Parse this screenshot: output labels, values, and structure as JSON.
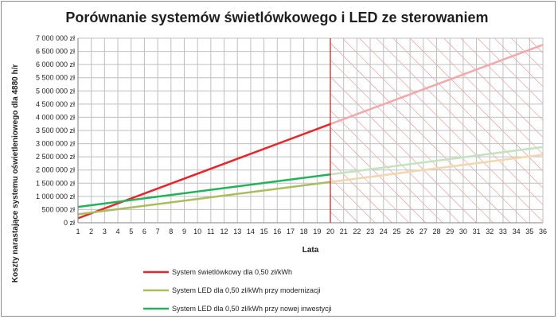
{
  "chart_data": {
    "type": "line",
    "title": "Porównanie systemów świetlówkowego i LED ze sterowaniem",
    "xlabel": "Lata",
    "ylabel": "Koszty narastające  systemu  oświetleniowego dla 4880 h/r",
    "x": [
      1,
      2,
      3,
      4,
      5,
      6,
      7,
      8,
      9,
      10,
      11,
      12,
      13,
      14,
      15,
      16,
      17,
      18,
      19,
      20,
      21,
      22,
      23,
      24,
      25,
      26,
      27,
      28,
      29,
      30,
      31,
      32,
      33,
      34,
      35,
      36
    ],
    "xlim": [
      1,
      36
    ],
    "ylim": [
      0,
      7000000
    ],
    "y_ticks": [
      {
        "value": 0,
        "label": "0 zł"
      },
      {
        "value": 500000,
        "label": "500 000 zł"
      },
      {
        "value": 1000000,
        "label": "1 000 000 zł"
      },
      {
        "value": 1500000,
        "label": "1 500 000 zł"
      },
      {
        "value": 2000000,
        "label": "2 000 000 zł"
      },
      {
        "value": 2500000,
        "label": "2 500 000 zł"
      },
      {
        "value": 3000000,
        "label": "3 000 000 zł"
      },
      {
        "value": 3500000,
        "label": "3 500 000 zł"
      },
      {
        "value": 4000000,
        "label": "4 000 000 zł"
      },
      {
        "value": 4500000,
        "label": "4 500 000 zł"
      },
      {
        "value": 5000000,
        "label": "5 000 000 zł"
      },
      {
        "value": 5500000,
        "label": "5 500 000 zł"
      },
      {
        "value": 6000000,
        "label": "6 000 000 zł"
      },
      {
        "value": 6500000,
        "label": "6 500 000 zł"
      },
      {
        "value": 7000000,
        "label": "7 000 000 zł"
      }
    ],
    "highlight_region": {
      "x_start": 20,
      "x_end": 36,
      "fill": "hatched",
      "color": "#e8787a"
    },
    "grid": true,
    "legend_position": "bottom",
    "series": [
      {
        "name": "System świetlówkowy dla 0,50 zł/kWh",
        "color": "#e8262a",
        "faded_color": "#f4a8aa",
        "start": {
          "x": 1,
          "y": 170000
        },
        "end": {
          "x": 36,
          "y": 6750000
        }
      },
      {
        "name": "System LED dla 0,50 zł/kWh przy modernizacji",
        "color": "#a8bd5c",
        "faded_color": "#f0d7b0",
        "start": {
          "x": 1,
          "y": 320000
        },
        "end": {
          "x": 36,
          "y": 2580000
        }
      },
      {
        "name": "System LED dla 0,50 zł/kWh przy nowej inwestycji",
        "color": "#22b35a",
        "faded_color": "#c2e3be",
        "start": {
          "x": 1,
          "y": 600000
        },
        "end": {
          "x": 36,
          "y": 2870000
        }
      }
    ]
  }
}
